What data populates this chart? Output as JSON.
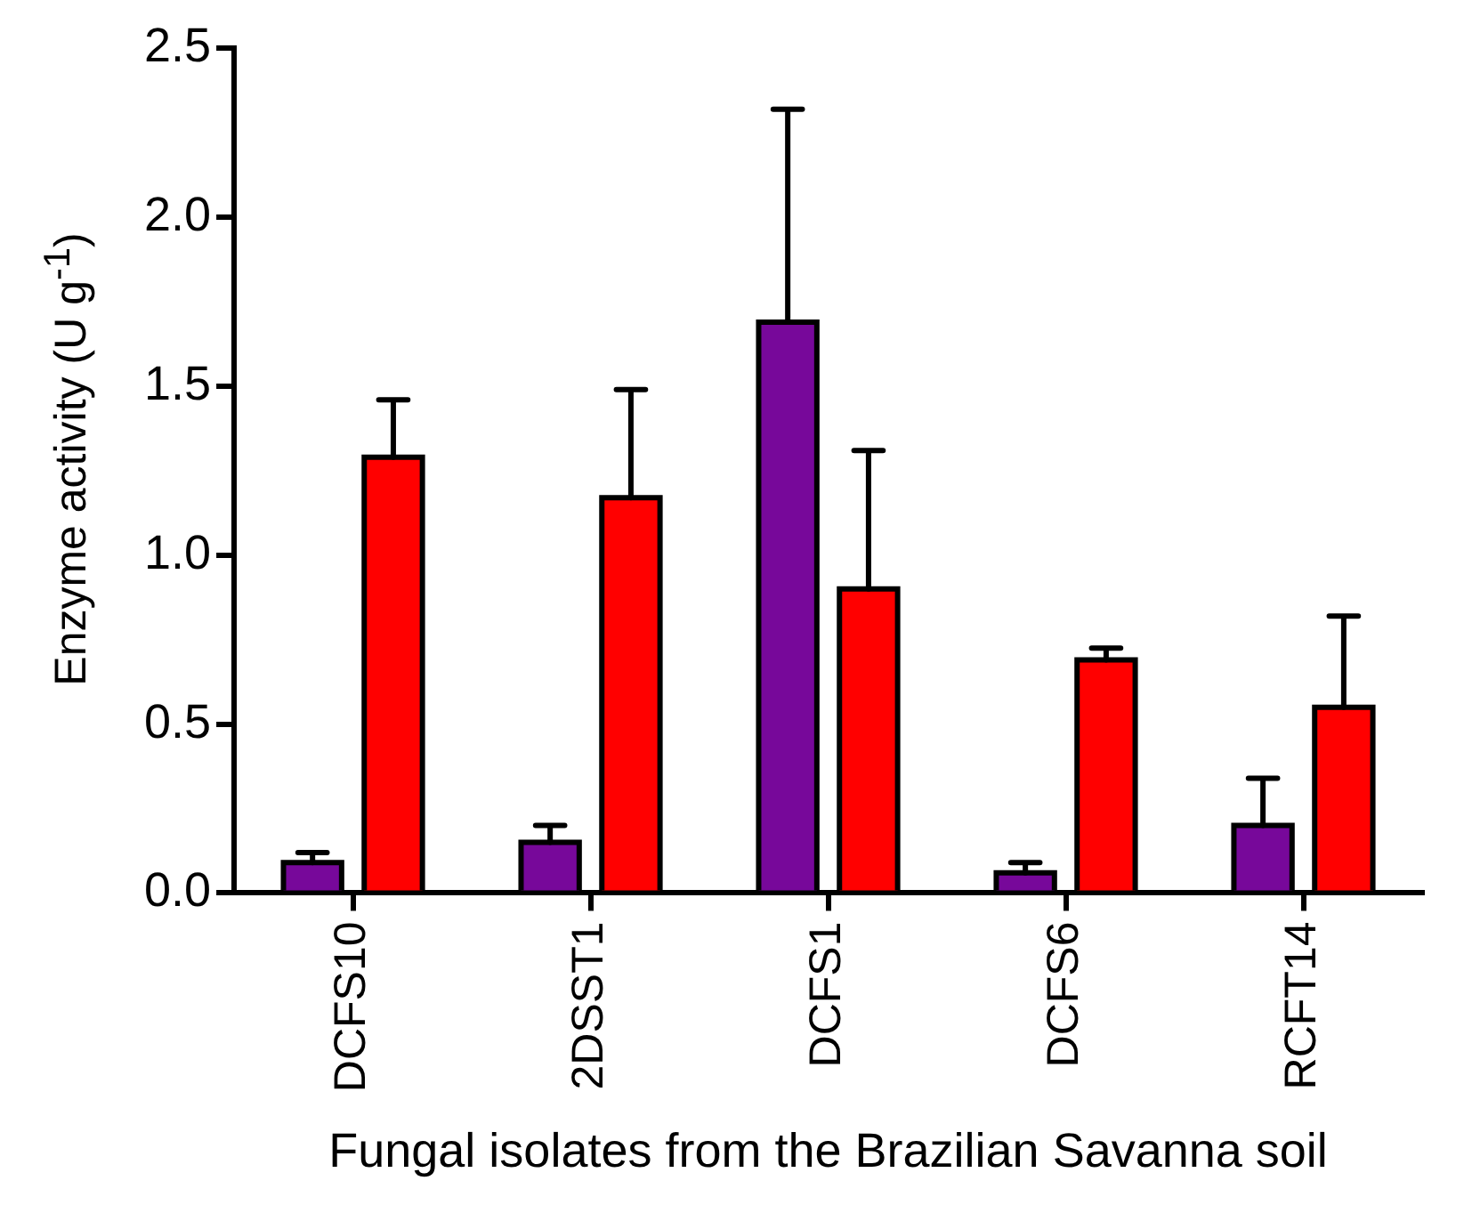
{
  "chart_data": {
    "type": "bar",
    "xlabel": "Fungal isolates from the Brazilian Savanna soil",
    "ylabel": "Enzyme activity (U g$^{-1}$)",
    "categories": [
      "DCFS10",
      "2DSST1",
      "DCFS1",
      "DCFS6",
      "RCFT14"
    ],
    "series": [
      {
        "color": "#77089a",
        "values": [
          0.09,
          0.15,
          1.69,
          0.06,
          0.2
        ],
        "errors": [
          [
            0.09,
            0.12
          ],
          [
            0.15,
            0.2
          ],
          [
            1.69,
            2.32
          ],
          [
            0.06,
            0.09
          ],
          [
            0.2,
            0.34
          ]
        ]
      },
      {
        "color": "#ff0000",
        "values": [
          1.29,
          1.17,
          0.9,
          0.69,
          0.55
        ],
        "errors": [
          [
            1.29,
            1.46
          ],
          [
            1.17,
            1.49
          ],
          [
            0.9,
            1.31
          ],
          [
            0.69,
            0.725
          ],
          [
            0.55,
            0.82
          ]
        ]
      }
    ],
    "ylim": [
      0,
      2.5
    ],
    "yticks": [
      {
        "value": 0,
        "label": "0.0"
      },
      {
        "value": 0.5,
        "label": "0.5"
      },
      {
        "value": 1,
        "label": "1.0"
      },
      {
        "value": 1.5,
        "label": "1.5"
      },
      {
        "value": 2,
        "label": "2.0"
      },
      {
        "value": 2.5,
        "label": "2.5"
      }
    ],
    "legend": false
  }
}
